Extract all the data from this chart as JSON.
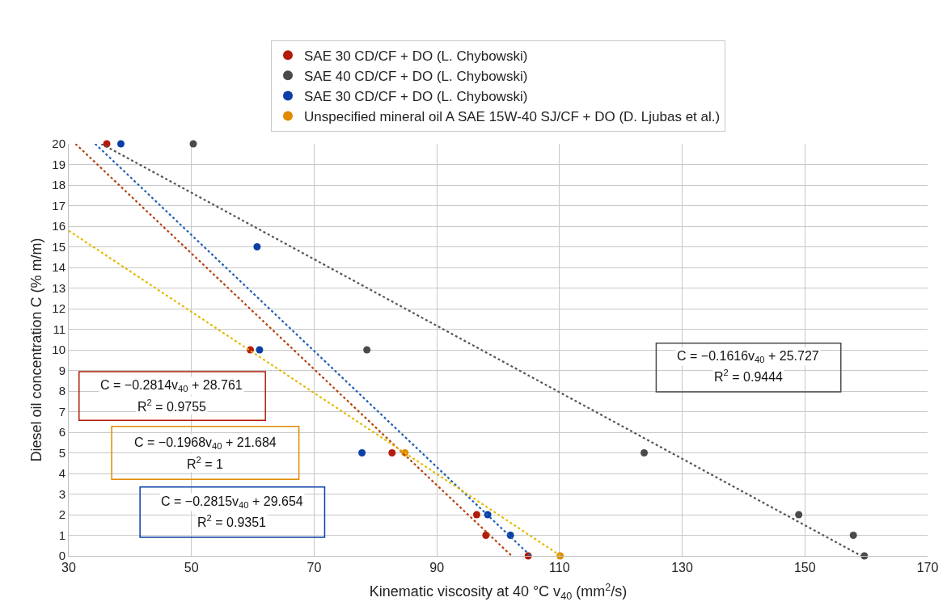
{
  "chart_data": {
    "type": "scatter",
    "xlabel": "Kinematic viscosity at 40 °C v$_{40}$ (mm$^{2}$/s)",
    "ylabel": "Diesel oil concentration C (% m/m)",
    "xlim": [
      30,
      170
    ],
    "xticks": [
      30,
      50,
      70,
      90,
      110,
      130,
      150,
      170
    ],
    "ylim": [
      0,
      20
    ],
    "yticks": [
      0,
      1,
      2,
      3,
      4,
      5,
      6,
      7,
      8,
      9,
      10,
      11,
      12,
      13,
      14,
      15,
      16,
      17,
      18,
      19,
      20
    ],
    "grid": true,
    "legend": "top",
    "marker": "circle",
    "series": [
      {
        "name": "SAE 30 CD/CF + DO (L. Chybowski)",
        "color": "#b31b0b",
        "x": [
          36.2,
          59.6,
          82.7,
          96.5,
          98.0,
          104.9
        ],
        "values": [
          20,
          10,
          5,
          2,
          1,
          0
        ]
      },
      {
        "name": "SAE 40 CD/CF + DO (L. Chybowski)",
        "color": "#4a4a4a",
        "x": [
          50.3,
          78.6,
          123.8,
          149.0,
          157.9,
          159.7
        ],
        "values": [
          20,
          10,
          5,
          2,
          1,
          0
        ]
      },
      {
        "name": "SAE 30 CD/CF + DO (L. Chybowski)",
        "color": "#0b3fa6",
        "x": [
          38.5,
          60.7,
          61.1,
          77.8,
          98.3,
          102.0
        ],
        "values": [
          20,
          15,
          10,
          5,
          2,
          1
        ]
      },
      {
        "name": "Unspecified mineral oil A SAE 15W-40 SJ/CF + DO (D. Ljubas et al.)",
        "color": "#e08a00",
        "x": [
          84.8,
          110.1
        ],
        "values": [
          5,
          0
        ]
      },
      {
        "type": "line",
        "color": "#b5400c",
        "line_style": "dotted",
        "marker": "none",
        "x": [
          31.1,
          102.2
        ],
        "values": [
          20,
          0
        ]
      },
      {
        "type": "line",
        "color": "#555555",
        "line_style": "dotted",
        "marker": "none",
        "x": [
          35.3,
          159.2
        ],
        "values": [
          20,
          0
        ]
      },
      {
        "type": "line",
        "color": "#1f5fb4",
        "line_style": "dotted",
        "marker": "none",
        "x": [
          34.3,
          105.3
        ],
        "values": [
          20,
          0
        ]
      },
      {
        "type": "line",
        "color": "#e6b800",
        "line_style": "dotted",
        "marker": "none",
        "x": [
          30,
          110.2
        ],
        "values": [
          15.78,
          0
        ]
      }
    ],
    "annotations": [
      "C = −0.2814v$_{40}$ + 28.761",
      "R$^{2}$ = 0.9755",
      "C = −0.1616v$_{40}$ + 25.727",
      "R$^{2}$ = 0.9444",
      "C = −0.2815v$_{40}$ + 29.654",
      "R$^{2}$ = 0.9351",
      "C = −0.1968v$_{40}$ + 21.684",
      "R$^{2}$ = 1"
    ]
  }
}
